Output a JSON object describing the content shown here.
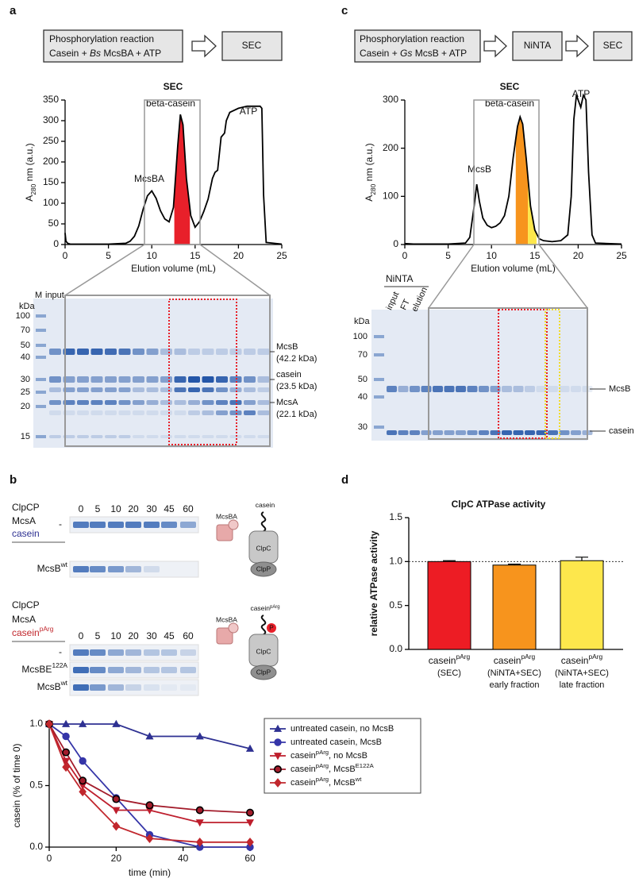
{
  "chart_data": [
    {
      "type": "line",
      "title": "SEC",
      "xlabel": "Elution volume (mL)",
      "ylabel": [
        "A",
        "280",
        " nm (a.u.)"
      ],
      "x": [
        0,
        0.1,
        0.3,
        0.6,
        5,
        7,
        7.5,
        8,
        8.5,
        9,
        9.5,
        10,
        10.5,
        11,
        11.5,
        12,
        12.5,
        13,
        13.3,
        13.6,
        14,
        14.5,
        15,
        15.5,
        16,
        16.5,
        17,
        17.3,
        17.6,
        18,
        18.4,
        18.6,
        19,
        20,
        21,
        22,
        22.5,
        22.7,
        22.9,
        23.2,
        25
      ],
      "values": [
        28,
        8,
        3,
        1,
        1,
        3,
        8,
        20,
        45,
        85,
        118,
        130,
        112,
        82,
        62,
        55,
        90,
        240,
        315,
        290,
        160,
        70,
        42,
        55,
        80,
        110,
        160,
        175,
        180,
        260,
        270,
        300,
        320,
        330,
        335,
        335,
        335,
        330,
        120,
        5,
        1
      ],
      "color": "#000000",
      "xlim": [
        0,
        25
      ],
      "xticks": [
        0,
        5,
        10,
        15,
        20,
        25
      ],
      "ylim": [
        0,
        350
      ],
      "yticks": [
        0,
        50,
        100,
        150,
        200,
        250,
        300,
        350
      ],
      "annotations": [
        "McsBA",
        "beta-casein",
        "ATP"
      ],
      "highlights": [
        {
          "range": [
            12.6,
            14.4
          ],
          "color": "#e8202a"
        }
      ]
    },
    {
      "type": "line",
      "title": "SEC",
      "xlabel": "Elution volume (mL)",
      "ylabel": [
        "A",
        "280",
        " nm (a.u.)"
      ],
      "x": [
        0,
        1,
        5,
        7,
        7.5,
        8,
        8.3,
        8.6,
        9,
        9.5,
        10,
        10.5,
        11,
        11.5,
        12,
        12.5,
        13,
        13.3,
        13.6,
        14,
        14.5,
        15,
        15.5,
        16,
        17,
        18,
        18.8,
        19.2,
        19.5,
        19.8,
        20.1,
        20.3,
        20.6,
        20.9,
        21.2,
        21.6,
        22,
        25
      ],
      "values": [
        2,
        1,
        1,
        3,
        15,
        80,
        125,
        90,
        55,
        40,
        35,
        38,
        45,
        60,
        100,
        180,
        245,
        265,
        250,
        180,
        80,
        30,
        12,
        8,
        6,
        8,
        20,
        100,
        260,
        310,
        295,
        285,
        310,
        300,
        150,
        20,
        3,
        1
      ],
      "color": "#000000",
      "xlim": [
        0,
        25
      ],
      "xticks": [
        0,
        5,
        10,
        15,
        20,
        25
      ],
      "ylim": [
        0,
        300
      ],
      "yticks": [
        0,
        100,
        200,
        300
      ],
      "annotations": [
        "McsB",
        "beta-casein",
        "ATP"
      ],
      "highlights": [
        {
          "range": [
            12.8,
            14.2
          ],
          "color": "#f7941d"
        },
        {
          "range": [
            14.2,
            15.2
          ],
          "color": "#fde74c"
        }
      ]
    },
    {
      "type": "line",
      "xlabel": "time (min)",
      "ylabel": "casein (% of time 0)",
      "x": [
        0,
        5,
        10,
        20,
        30,
        45,
        60
      ],
      "xlim": [
        0,
        60
      ],
      "xticks": [
        0,
        20,
        40,
        60
      ],
      "ylim": [
        0,
        1
      ],
      "yticks": [
        {
          "value": 0,
          "label": "0.0"
        },
        {
          "value": 0.5,
          "label": "0.5"
        },
        {
          "value": 1,
          "label": "1.0"
        }
      ],
      "legend": "right",
      "series": [
        {
          "name": [
            "untreated casein, no McsB"
          ],
          "color": "#2e3192",
          "marker": "triangle-up",
          "values": [
            1,
            1,
            1,
            1,
            0.9,
            0.9,
            0.8
          ]
        },
        {
          "name": [
            "untreated casein, McsB"
          ],
          "color": "#3535a8",
          "marker": "circle",
          "values": [
            1,
            0.9,
            0.7,
            0.4,
            0.1,
            0,
            0
          ]
        },
        {
          "name": [
            "casein",
            "pArg",
            ", no McsB"
          ],
          "color": "#be1e2d",
          "marker": "triangle-down",
          "values": [
            1,
            0.7,
            0.5,
            0.3,
            0.3,
            0.2,
            0.2
          ]
        },
        {
          "name": [
            "casein",
            "pArg",
            ", McsB",
            "E122A"
          ],
          "color": "#a31c2b",
          "edgecolor": "#000000",
          "marker": "circle",
          "values": [
            1,
            0.77,
            0.54,
            0.39,
            0.34,
            0.3,
            0.28
          ]
        },
        {
          "name": [
            "casein",
            "pArg",
            ", McsB",
            "wt"
          ],
          "color": "#c1272d",
          "marker": "diamond",
          "values": [
            1,
            0.65,
            0.45,
            0.17,
            0.07,
            0.04,
            0.04
          ]
        }
      ]
    },
    {
      "type": "bar",
      "title": "ClpC ATPase activity",
      "ylabel": "relative ATPase activity",
      "categories": [
        [
          [
            "casein",
            "pArg"
          ],
          [
            "(SEC)"
          ]
        ],
        [
          [
            "casein",
            "pArg"
          ],
          [
            "(NiNTA+SEC)"
          ],
          [
            "early fraction"
          ]
        ],
        [
          [
            "casein",
            "pArg"
          ],
          [
            "(NiNTA+SEC)"
          ],
          [
            "late fraction"
          ]
        ]
      ],
      "values": [
        1.0,
        0.96,
        1.01
      ],
      "errors": [
        0.01,
        0.01,
        0.04
      ],
      "colors": [
        "#ed1c24",
        "#f7941d",
        "#fde74c"
      ],
      "ylim": [
        0,
        1.5
      ],
      "yticks": [
        {
          "value": 0,
          "label": "0.0"
        },
        {
          "value": 0.5,
          "label": "0.5"
        },
        {
          "value": 1,
          "label": "1.0"
        },
        {
          "value": 1.5,
          "label": "1.5"
        }
      ],
      "refline": 1
    }
  ],
  "panels": {
    "a": {
      "letter": "a",
      "flow": [
        "Phosphorylation reaction",
        [
          "Casein + ",
          "Bs",
          " McsBA + ATP"
        ],
        "SEC"
      ],
      "gel": {
        "lanes": [
          "M",
          "input"
        ],
        "kda_label": "kDa",
        "markers": [
          100,
          70,
          50,
          40,
          30,
          25,
          20,
          15
        ],
        "bands": [
          "McsB",
          "(42.2 kDa)",
          "casein",
          "(23.5 kDa)",
          "McsA",
          "(22.1 kDa)"
        ]
      }
    },
    "c": {
      "letter": "c",
      "flow": [
        "Phosphorylation reaction",
        [
          "Casein + ",
          "Gs",
          " McsB + ATP"
        ],
        "NiNTA",
        "SEC"
      ],
      "gel": {
        "header": "NiNTA",
        "lanes": [
          "input",
          "FT",
          "elution"
        ],
        "kda_label": "kDa",
        "markers": [
          100,
          70,
          50,
          40,
          30
        ],
        "bands": [
          "McsB",
          "casein"
        ]
      }
    },
    "b": {
      "letter": "b",
      "assays": [
        {
          "conditions": [
            "ClpCP",
            "McsA",
            [
              "casein"
            ]
          ],
          "times": [
            0,
            5,
            10,
            20,
            30,
            45,
            60
          ],
          "rows": [
            [
              "-"
            ],
            [
              "McsB",
              "wt"
            ]
          ],
          "enzyme": "McsBA",
          "substrate": [
            "casein"
          ],
          "clpc": "ClpC",
          "clpp": "ClpP"
        },
        {
          "conditions": [
            "ClpCP",
            "McsA",
            [
              "casein",
              "pArg"
            ]
          ],
          "times": [
            0,
            5,
            10,
            20,
            30,
            45,
            60
          ],
          "rows": [
            [
              "-"
            ],
            [
              "McsBE",
              "122A"
            ],
            [
              "McsB",
              "wt"
            ]
          ],
          "enzyme": "McsBA",
          "substrate": [
            "casein",
            "pArg"
          ],
          "phospho": "P",
          "clpc": "ClpC",
          "clpp": "ClpP"
        }
      ]
    },
    "d": {
      "letter": "d"
    }
  }
}
